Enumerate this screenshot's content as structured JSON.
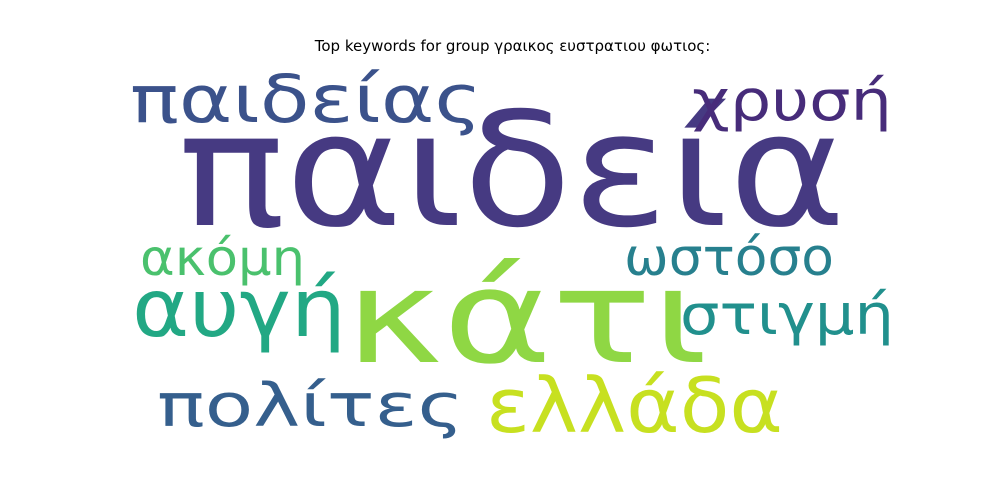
{
  "chart_data": {
    "type": "wordcloud",
    "title": "Top keywords for group γραικος ευστρατιου φωτιος:",
    "words": [
      {
        "text": "παιδεία",
        "rank": 1,
        "color": "#463a82"
      },
      {
        "text": "κάτι",
        "rank": 2,
        "color": "#8fd744"
      },
      {
        "text": "παιδείας",
        "rank": 3,
        "color": "#3b528b"
      },
      {
        "text": "ελλάδα",
        "rank": 4,
        "color": "#c7e020"
      },
      {
        "text": "αυγή",
        "rank": 5,
        "color": "#22a884"
      },
      {
        "text": "πολίτες",
        "rank": 6,
        "color": "#355f8d"
      },
      {
        "text": "στιγμή",
        "rank": 7,
        "color": "#21908d"
      },
      {
        "text": "ωστόσο",
        "rank": 8,
        "color": "#27808e"
      },
      {
        "text": "χρυσή",
        "rank": 9,
        "color": "#472c7a"
      },
      {
        "text": "ακόμη",
        "rank": 10,
        "color": "#4ac16d"
      }
    ]
  }
}
